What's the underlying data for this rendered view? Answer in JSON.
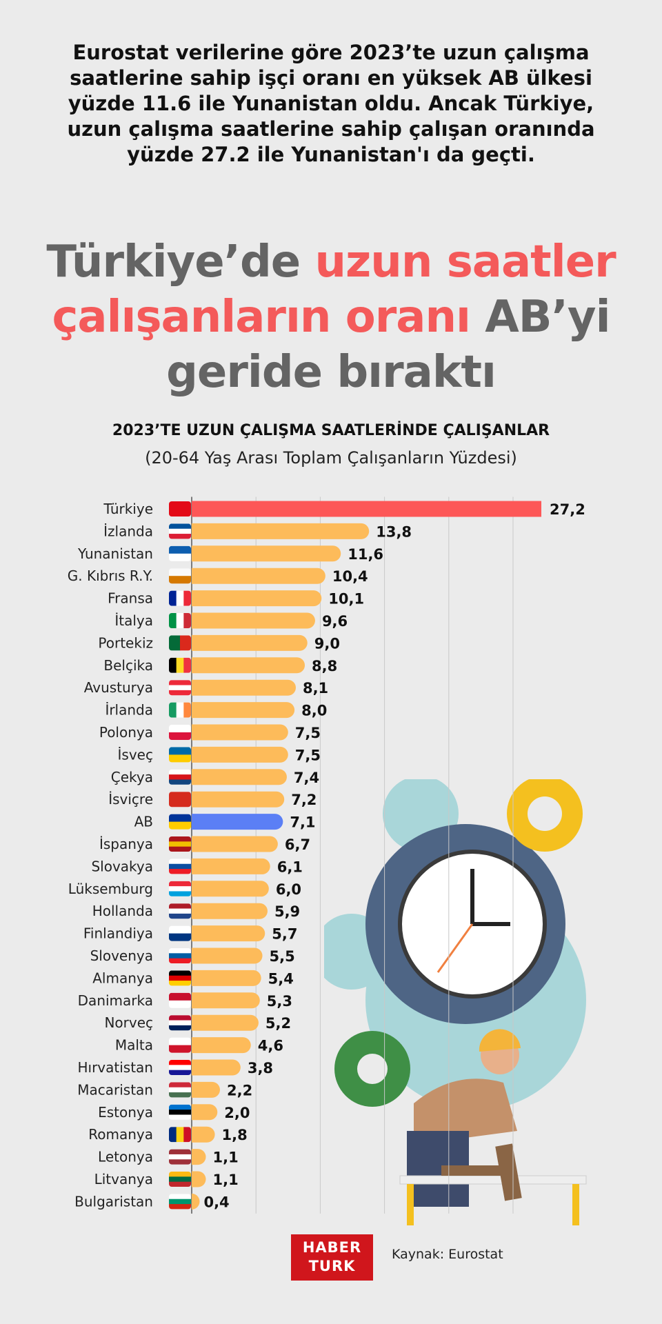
{
  "intro": "Eurostat verilerine göre 2023’te uzun çalışma saatlerine sahip işçi oranı en yüksek AB ülkesi yüzde 11.6 ile Yunanistan oldu. Ancak Türkiye, uzun çalışma saatlerine sahip çalışan oranında yüzde 27.2 ile Yunanistan'ı da geçti.",
  "headline": {
    "part1": "Türkiye’de ",
    "part2": "uzun saatler çalışanların oranı",
    "part3": " AB’yi geride bıraktı"
  },
  "colors": {
    "highlight": "#f45a5a",
    "default_bar": "#fdbb5a",
    "turkey_bar": "#fd5757",
    "eu_bar": "#5b7ff5",
    "headline_gray": "#646464"
  },
  "chart_data": {
    "type": "bar",
    "orientation": "horizontal",
    "title": "2023’TE UZUN ÇALIŞMA SAATLERİNDE ÇALIŞANLAR",
    "subtitle": "(20-64 Yaş Arası Toplam Çalışanların Yüzdesi)",
    "grid": true,
    "xlim": [
      0,
      28
    ],
    "categories": [
      "Türkiye",
      "İzlanda",
      "Yunanistan",
      "G. Kıbrıs R.Y.",
      "Fransa",
      "İtalya",
      "Portekiz",
      "Belçika",
      "Avusturya",
      "İrlanda",
      "Polonya",
      "İsveç",
      "Çekya",
      "İsviçre",
      "AB",
      "İspanya",
      "Slovakya",
      "Lüksemburg",
      "Hollanda",
      "Finlandiya",
      "Slovenya",
      "Almanya",
      "Danimarka",
      "Norveç",
      "Malta",
      "Hırvatistan",
      "Macaristan",
      "Estonya",
      "Romanya",
      "Letonya",
      "Litvanya",
      "Bulgaristan"
    ],
    "values": [
      27.2,
      13.8,
      11.6,
      10.4,
      10.1,
      9.6,
      9.0,
      8.8,
      8.1,
      8.0,
      7.5,
      7.5,
      7.4,
      7.2,
      7.1,
      6.7,
      6.1,
      6.0,
      5.9,
      5.7,
      5.5,
      5.4,
      5.3,
      5.2,
      4.6,
      3.8,
      2.2,
      2.0,
      1.8,
      1.1,
      1.1,
      0.4
    ],
    "value_labels": [
      "27,2",
      "13,8",
      "11,6",
      "10,4",
      "10,1",
      "9,6",
      "9,0",
      "8,8",
      "8,1",
      "8,0",
      "7,5",
      "7,5",
      "7,4",
      "7,2",
      "7,1",
      "6,7",
      "6,1",
      "6,0",
      "5,9",
      "5,7",
      "5,5",
      "5,4",
      "5,3",
      "5,2",
      "4,6",
      "3,8",
      "2,2",
      "2,0",
      "1,8",
      "1,1",
      "1,1",
      "0,4"
    ],
    "flags": [
      [
        "#e30a17"
      ],
      [
        "#02529c",
        "#fff",
        "#dc1e35"
      ],
      [
        "#0d5eaf",
        "#fff"
      ],
      [
        "#fafafa",
        "#d57800"
      ],
      [
        "#002395",
        "#fff",
        "#ed2939"
      ],
      [
        "#009246",
        "#fff",
        "#ce2b37"
      ],
      [
        "#046a38",
        "#da291c"
      ],
      [
        "#000",
        "#fdda24",
        "#ef3340"
      ],
      [
        "#ed2939",
        "#fff",
        "#ed2939"
      ],
      [
        "#169b62",
        "#fff",
        "#ff883e"
      ],
      [
        "#fff",
        "#dc143c"
      ],
      [
        "#006aa7",
        "#fecc00"
      ],
      [
        "#fff",
        "#d7141a",
        "#11457e"
      ],
      [
        "#d52b1e"
      ],
      [
        "#003399",
        "#ffcc00"
      ],
      [
        "#aa151b",
        "#f1bf00",
        "#aa151b"
      ],
      [
        "#fff",
        "#0b4ea2",
        "#ee1c25"
      ],
      [
        "#ed2939",
        "#fff",
        "#00a1de"
      ],
      [
        "#ae1c28",
        "#fff",
        "#21468b"
      ],
      [
        "#fff",
        "#003580"
      ],
      [
        "#fff",
        "#005da4",
        "#ed1c24"
      ],
      [
        "#000",
        "#dd0000",
        "#ffce00"
      ],
      [
        "#c8102e",
        "#fff"
      ],
      [
        "#ba0c2f",
        "#fff",
        "#00205b"
      ],
      [
        "#fff",
        "#cf142b"
      ],
      [
        "#ff0000",
        "#fff",
        "#171796"
      ],
      [
        "#ce2939",
        "#fff",
        "#477050"
      ],
      [
        "#0072ce",
        "#000",
        "#fff"
      ],
      [
        "#002b7f",
        "#fcd116",
        "#ce1126"
      ],
      [
        "#9e3039",
        "#fff",
        "#9e3039"
      ],
      [
        "#fdb913",
        "#006a44",
        "#c1272d"
      ],
      [
        "#fff",
        "#00966e",
        "#d62612"
      ]
    ]
  },
  "footer": {
    "logo_line1": "HABER",
    "logo_line2": "TURK",
    "source": "Kaynak: Eurostat"
  }
}
